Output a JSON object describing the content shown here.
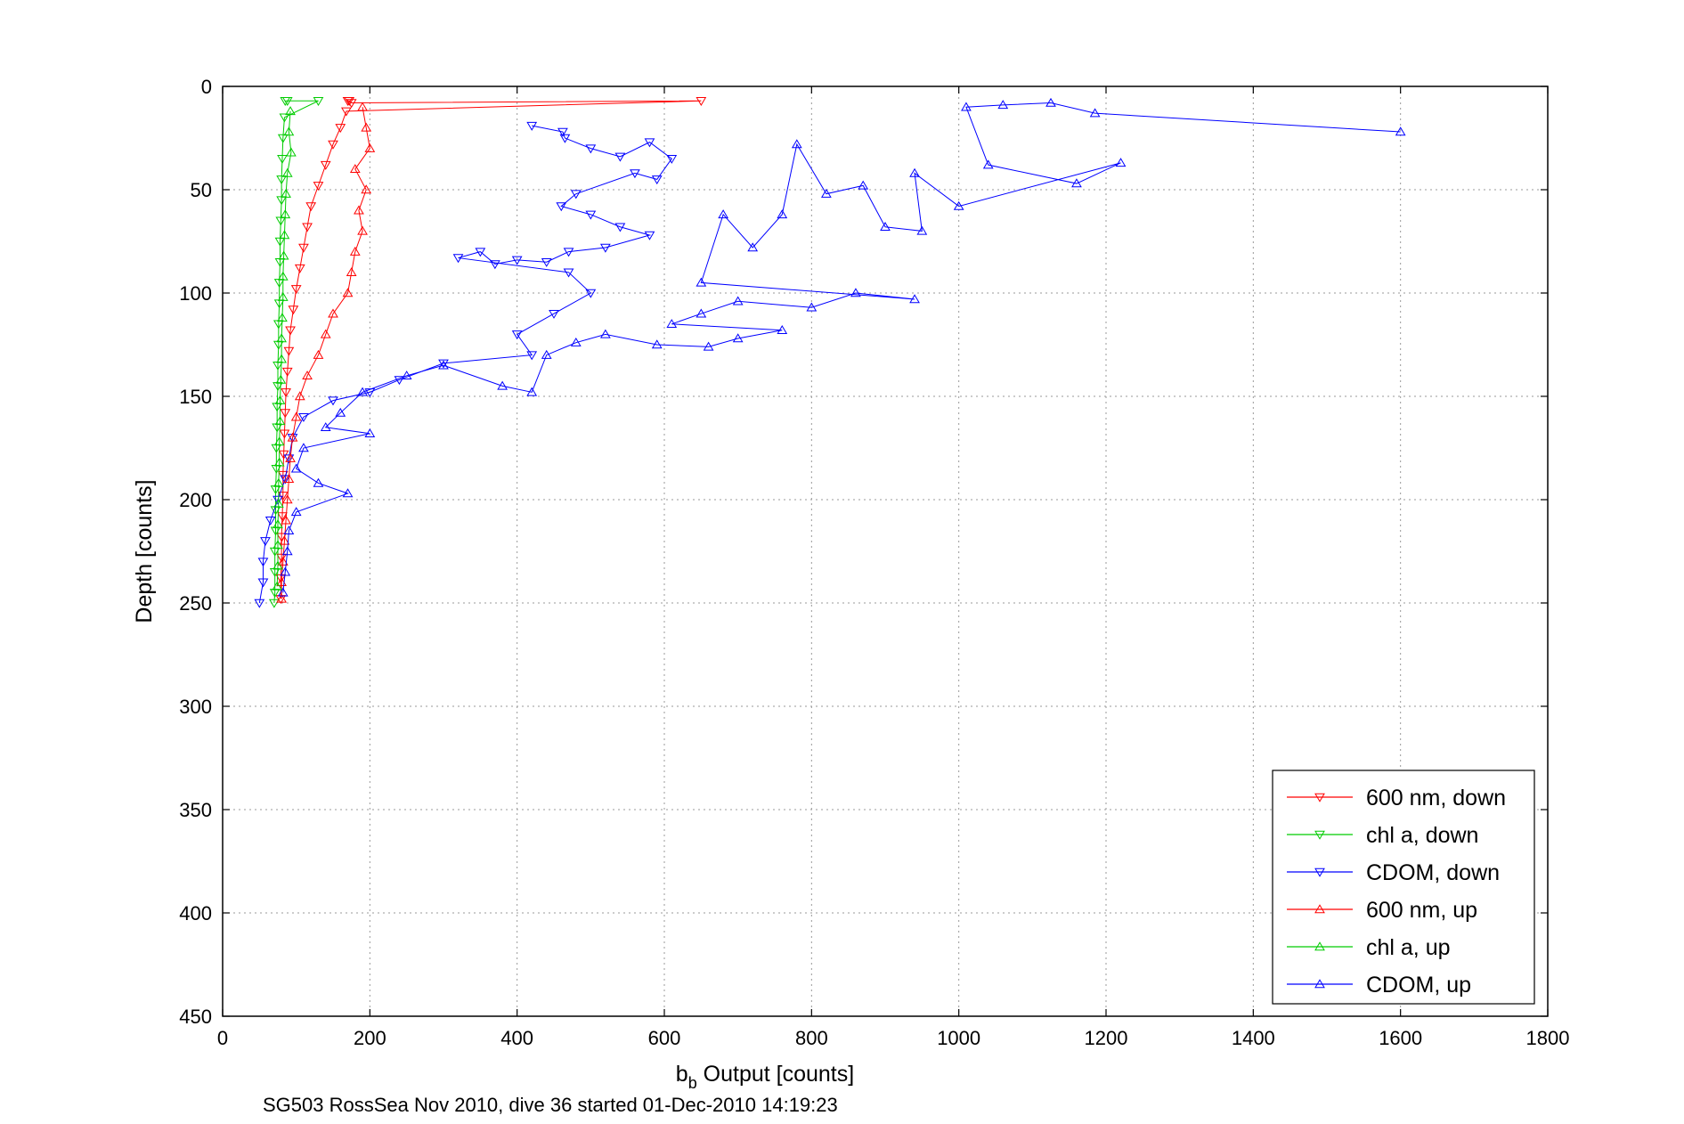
{
  "chart_data": {
    "type": "scatter",
    "title": "",
    "xlabel_main": "b",
    "xlabel_sub": "b",
    "xlabel_rest": " Output [counts]",
    "ylabel": "Depth [counts]",
    "caption": "SG503 RossSea Nov 2010, dive 36 started 01-Dec-2010 14:19:23",
    "xlim": [
      0,
      1800
    ],
    "ylim": [
      0,
      450
    ],
    "y_reversed": true,
    "grid": true,
    "x_ticks": [
      0,
      200,
      400,
      600,
      800,
      1000,
      1200,
      1400,
      1600,
      1800
    ],
    "y_ticks": [
      0,
      50,
      100,
      150,
      200,
      250,
      300,
      350,
      400,
      450
    ],
    "legend_position": "bottom-right",
    "series": [
      {
        "name": "600 nm, down",
        "color": "#ff0000",
        "marker": "triangle-down",
        "points": [
          [
            170,
            7
          ],
          [
            172,
            7
          ],
          [
            175,
            8
          ],
          [
            650,
            7
          ],
          [
            168,
            12
          ],
          [
            160,
            20
          ],
          [
            150,
            28
          ],
          [
            140,
            38
          ],
          [
            130,
            48
          ],
          [
            120,
            58
          ],
          [
            115,
            68
          ],
          [
            110,
            78
          ],
          [
            105,
            88
          ],
          [
            100,
            98
          ],
          [
            96,
            108
          ],
          [
            92,
            118
          ],
          [
            90,
            128
          ],
          [
            88,
            138
          ],
          [
            86,
            148
          ],
          [
            85,
            158
          ],
          [
            84,
            168
          ],
          [
            83,
            178
          ],
          [
            82,
            188
          ],
          [
            82,
            198
          ],
          [
            81,
            208
          ],
          [
            80,
            218
          ],
          [
            80,
            228
          ],
          [
            79,
            238
          ],
          [
            79,
            248
          ]
        ]
      },
      {
        "name": "chl a, down",
        "color": "#00cc00",
        "marker": "triangle-down",
        "points": [
          [
            85,
            7
          ],
          [
            88,
            7
          ],
          [
            130,
            7
          ],
          [
            84,
            15
          ],
          [
            82,
            25
          ],
          [
            81,
            35
          ],
          [
            80,
            45
          ],
          [
            80,
            55
          ],
          [
            79,
            65
          ],
          [
            78,
            75
          ],
          [
            78,
            85
          ],
          [
            77,
            95
          ],
          [
            77,
            105
          ],
          [
            76,
            115
          ],
          [
            76,
            125
          ],
          [
            75,
            135
          ],
          [
            75,
            145
          ],
          [
            74,
            155
          ],
          [
            74,
            165
          ],
          [
            73,
            175
          ],
          [
            73,
            185
          ],
          [
            72,
            195
          ],
          [
            72,
            205
          ],
          [
            72,
            215
          ],
          [
            71,
            225
          ],
          [
            71,
            235
          ],
          [
            71,
            245
          ],
          [
            70,
            250
          ]
        ]
      },
      {
        "name": "CDOM, down",
        "color": "#0000ff",
        "marker": "triangle-down",
        "points": [
          [
            420,
            19
          ],
          [
            462,
            22
          ],
          [
            465,
            25
          ],
          [
            500,
            30
          ],
          [
            540,
            34
          ],
          [
            580,
            27
          ],
          [
            610,
            35
          ],
          [
            590,
            45
          ],
          [
            560,
            42
          ],
          [
            480,
            52
          ],
          [
            460,
            58
          ],
          [
            500,
            62
          ],
          [
            540,
            68
          ],
          [
            580,
            72
          ],
          [
            520,
            78
          ],
          [
            470,
            80
          ],
          [
            440,
            85
          ],
          [
            400,
            84
          ],
          [
            370,
            86
          ],
          [
            350,
            80
          ],
          [
            320,
            83
          ],
          [
            470,
            90
          ],
          [
            500,
            100
          ],
          [
            450,
            110
          ],
          [
            400,
            120
          ],
          [
            420,
            130
          ],
          [
            300,
            134
          ],
          [
            240,
            142
          ],
          [
            200,
            148
          ],
          [
            150,
            152
          ],
          [
            110,
            160
          ],
          [
            95,
            170
          ],
          [
            90,
            180
          ],
          [
            85,
            190
          ],
          [
            75,
            200
          ],
          [
            65,
            210
          ],
          [
            58,
            220
          ],
          [
            55,
            230
          ],
          [
            55,
            240
          ],
          [
            50,
            250
          ]
        ]
      },
      {
        "name": "600 nm, up",
        "color": "#ff0000",
        "marker": "triangle-up",
        "points": [
          [
            190,
            10
          ],
          [
            195,
            20
          ],
          [
            200,
            30
          ],
          [
            180,
            40
          ],
          [
            195,
            50
          ],
          [
            185,
            60
          ],
          [
            190,
            70
          ],
          [
            180,
            80
          ],
          [
            175,
            90
          ],
          [
            170,
            100
          ],
          [
            150,
            110
          ],
          [
            140,
            120
          ],
          [
            130,
            130
          ],
          [
            115,
            140
          ],
          [
            105,
            150
          ],
          [
            100,
            160
          ],
          [
            95,
            170
          ],
          [
            92,
            180
          ],
          [
            90,
            190
          ],
          [
            88,
            200
          ],
          [
            86,
            210
          ],
          [
            84,
            220
          ],
          [
            82,
            230
          ],
          [
            80,
            240
          ],
          [
            80,
            248
          ]
        ]
      },
      {
        "name": "chl a, up",
        "color": "#00cc00",
        "marker": "triangle-up",
        "points": [
          [
            92,
            12
          ],
          [
            90,
            22
          ],
          [
            93,
            32
          ],
          [
            88,
            42
          ],
          [
            86,
            52
          ],
          [
            85,
            62
          ],
          [
            84,
            72
          ],
          [
            83,
            82
          ],
          [
            82,
            92
          ],
          [
            82,
            102
          ],
          [
            81,
            112
          ],
          [
            80,
            122
          ],
          [
            80,
            132
          ],
          [
            79,
            142
          ],
          [
            78,
            152
          ],
          [
            78,
            162
          ],
          [
            77,
            172
          ],
          [
            77,
            182
          ],
          [
            76,
            192
          ],
          [
            76,
            202
          ],
          [
            75,
            212
          ],
          [
            75,
            222
          ],
          [
            75,
            232
          ],
          [
            74,
            242
          ]
        ]
      },
      {
        "name": "CDOM, up",
        "color": "#0000ff",
        "marker": "triangle-up",
        "points": [
          [
            1600,
            22
          ],
          [
            1185,
            13
          ],
          [
            1125,
            8
          ],
          [
            1060,
            9
          ],
          [
            1010,
            10
          ],
          [
            1040,
            38
          ],
          [
            1160,
            47
          ],
          [
            1220,
            37
          ],
          [
            1000,
            58
          ],
          [
            940,
            42
          ],
          [
            950,
            70
          ],
          [
            900,
            68
          ],
          [
            870,
            48
          ],
          [
            820,
            52
          ],
          [
            780,
            28
          ],
          [
            760,
            62
          ],
          [
            720,
            78
          ],
          [
            680,
            62
          ],
          [
            650,
            95
          ],
          [
            940,
            103
          ],
          [
            860,
            100
          ],
          [
            800,
            107
          ],
          [
            700,
            104
          ],
          [
            650,
            110
          ],
          [
            610,
            115
          ],
          [
            760,
            118
          ],
          [
            700,
            122
          ],
          [
            660,
            126
          ],
          [
            590,
            125
          ],
          [
            520,
            120
          ],
          [
            480,
            124
          ],
          [
            440,
            130
          ],
          [
            420,
            148
          ],
          [
            380,
            145
          ],
          [
            300,
            135
          ],
          [
            250,
            140
          ],
          [
            190,
            148
          ],
          [
            160,
            158
          ],
          [
            140,
            165
          ],
          [
            200,
            168
          ],
          [
            110,
            175
          ],
          [
            100,
            185
          ],
          [
            130,
            192
          ],
          [
            170,
            197
          ],
          [
            100,
            206
          ],
          [
            90,
            215
          ],
          [
            88,
            225
          ],
          [
            85,
            235
          ],
          [
            82,
            245
          ]
        ]
      }
    ]
  }
}
